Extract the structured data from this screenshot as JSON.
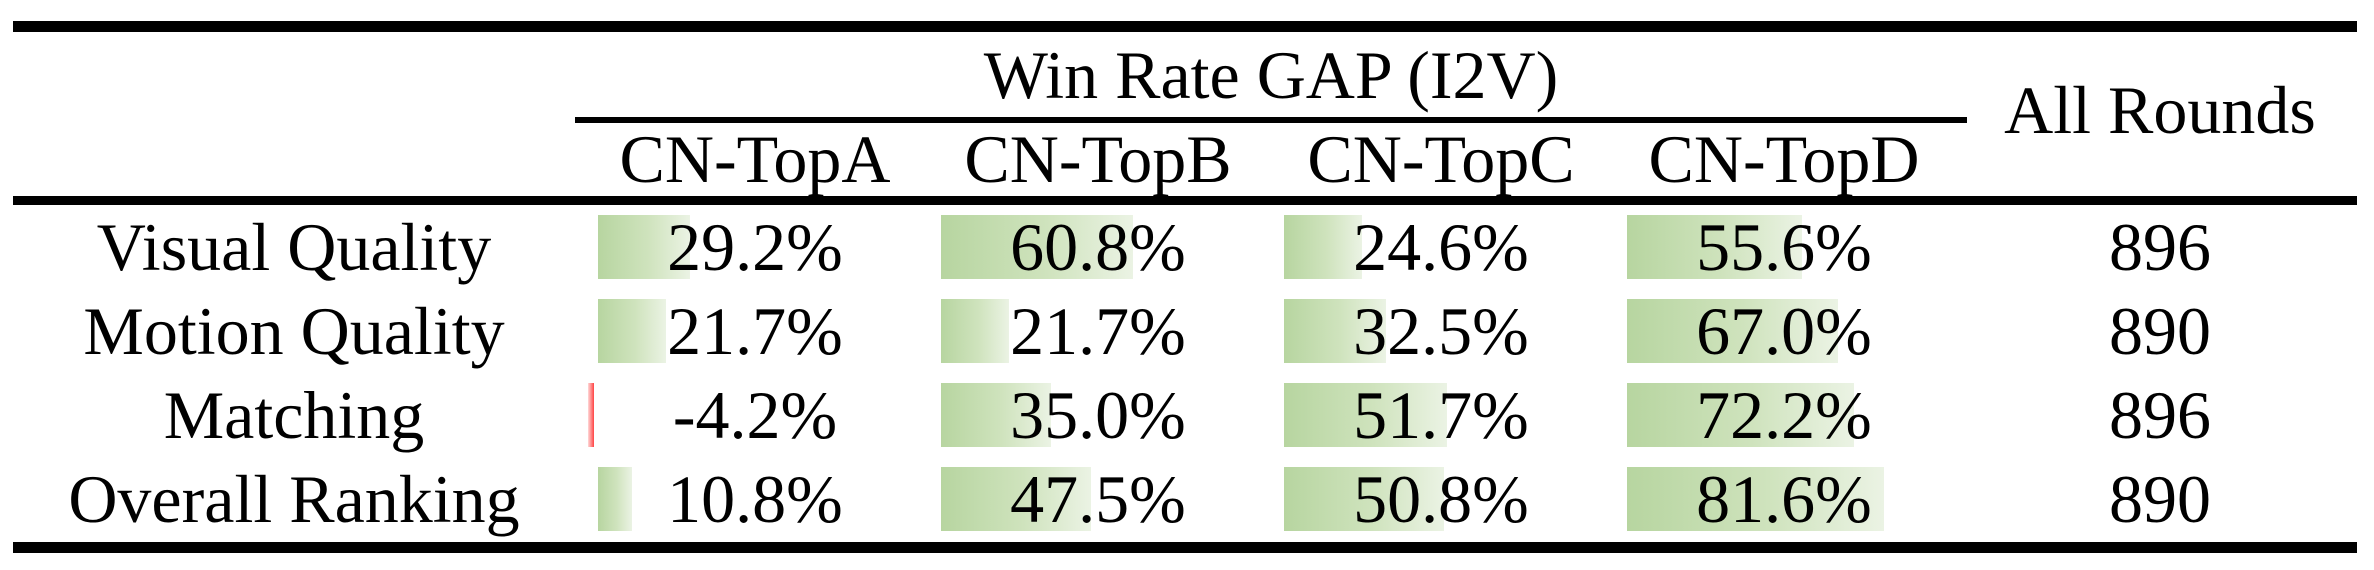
{
  "table": {
    "group_header": "Win Rate GAP (I2V)",
    "all_rounds_header": "All Rounds",
    "columns": [
      "CN-TopA",
      "CN-TopB",
      "CN-TopC",
      "CN-TopD"
    ],
    "rows": [
      {
        "label": "Visual Quality",
        "values": [
          "29.2%",
          "60.8%",
          "24.6%",
          "55.6%"
        ],
        "numeric": [
          29.2,
          60.8,
          24.6,
          55.6
        ],
        "all_rounds": "896"
      },
      {
        "label": "Motion Quality",
        "values": [
          "21.7%",
          "21.7%",
          "32.5%",
          "67.0%"
        ],
        "numeric": [
          21.7,
          21.7,
          32.5,
          67.0
        ],
        "all_rounds": "890"
      },
      {
        "label": "Matching",
        "values": [
          "-4.2%",
          "35.0%",
          "51.7%",
          "72.2%"
        ],
        "numeric": [
          -4.2,
          35.0,
          51.7,
          72.2
        ],
        "all_rounds": "896"
      },
      {
        "label": "Overall Ranking",
        "values": [
          "10.8%",
          "47.5%",
          "50.8%",
          "81.6%"
        ],
        "numeric": [
          10.8,
          47.5,
          50.8,
          81.6
        ],
        "all_rounds": "890"
      }
    ],
    "colors": {
      "positive_bar_start": "#b7d5a0",
      "positive_bar_end": "#ebf3e4",
      "negative_bar": "#ff4343",
      "rule": "#000000",
      "background": "#ffffff"
    }
  }
}
